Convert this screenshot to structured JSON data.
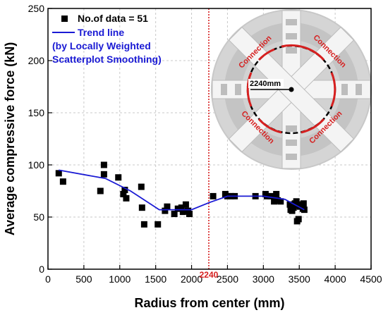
{
  "chart_data": {
    "type": "scatter",
    "xlabel": "Radius from center (mm)",
    "ylabel": "Average compressive force (kN)",
    "xlim": [
      0,
      4500
    ],
    "ylim": [
      0,
      250
    ],
    "xticks": [
      0,
      500,
      1000,
      1500,
      2000,
      2500,
      3000,
      3500,
      4000,
      4500
    ],
    "yticks": [
      0,
      50,
      100,
      150,
      200,
      250
    ],
    "grid": true,
    "legend_position": "top-left",
    "series": [
      {
        "name": "No.of data = 51",
        "kind": "scatter",
        "color": "#000000",
        "points": [
          [
            150,
            92
          ],
          [
            210,
            84
          ],
          [
            730,
            75
          ],
          [
            780,
            100
          ],
          [
            780,
            91
          ],
          [
            980,
            88
          ],
          [
            1050,
            72
          ],
          [
            1070,
            76
          ],
          [
            1090,
            68
          ],
          [
            1300,
            79
          ],
          [
            1310,
            59
          ],
          [
            1340,
            43
          ],
          [
            1530,
            43
          ],
          [
            1630,
            56
          ],
          [
            1660,
            60
          ],
          [
            1760,
            53
          ],
          [
            1810,
            58
          ],
          [
            1860,
            59
          ],
          [
            1880,
            55
          ],
          [
            1920,
            62
          ],
          [
            1950,
            56
          ],
          [
            1970,
            53
          ],
          [
            2300,
            70
          ],
          [
            2470,
            72
          ],
          [
            2500,
            70
          ],
          [
            2550,
            70
          ],
          [
            2600,
            70
          ],
          [
            2890,
            70
          ],
          [
            3030,
            72
          ],
          [
            3050,
            70
          ],
          [
            3100,
            70
          ],
          [
            3150,
            65
          ],
          [
            3180,
            72
          ],
          [
            3200,
            66
          ],
          [
            3240,
            65
          ],
          [
            3370,
            62
          ],
          [
            3380,
            57
          ],
          [
            3400,
            56
          ],
          [
            3420,
            59
          ],
          [
            3440,
            63
          ],
          [
            3460,
            65
          ],
          [
            3470,
            46
          ],
          [
            3480,
            61
          ],
          [
            3490,
            48
          ],
          [
            3500,
            62
          ],
          [
            3510,
            60
          ],
          [
            3520,
            62
          ],
          [
            3540,
            61
          ],
          [
            3550,
            58
          ],
          [
            3560,
            63
          ],
          [
            3570,
            57
          ]
        ]
      },
      {
        "name": "Trend line",
        "label_lines": [
          "Trend line",
          "(by Locally Weighted",
          "Scatterplot Smoothing)"
        ],
        "kind": "line",
        "color": "#1a1ad4",
        "points": [
          [
            150,
            95
          ],
          [
            800,
            87
          ],
          [
            1150,
            75
          ],
          [
            1550,
            57
          ],
          [
            2000,
            57
          ],
          [
            2250,
            64
          ],
          [
            2500,
            70
          ],
          [
            3000,
            70
          ],
          [
            3300,
            67
          ],
          [
            3570,
            57
          ]
        ]
      }
    ],
    "reference_line": {
      "x": 2240,
      "label": "2240",
      "color": "#d62020"
    },
    "inset": {
      "radius_label": "2240mm",
      "connection_label": "Connection",
      "accent_color": "#d62020"
    }
  }
}
